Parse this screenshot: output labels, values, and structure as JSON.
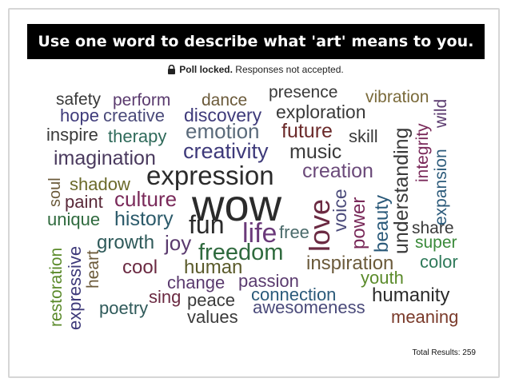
{
  "header": {
    "title": "Use one word to describe what 'art' means to you."
  },
  "status": {
    "locked_label": "Poll locked.",
    "message": "Responses not accepted.",
    "icon": "lock-icon"
  },
  "footer": {
    "total_label": "Total Results: 259"
  },
  "colors": {
    "title_bg": "#000000",
    "word_palette": [
      "#2b2b2b",
      "#3e3a7a",
      "#5a3a6e",
      "#6b2a42",
      "#2f6a3e",
      "#7a6a3a",
      "#2b5a7a",
      "#7a3a2a"
    ]
  },
  "words": [
    "wow",
    "expression",
    "creativity",
    "emotion",
    "imagination",
    "music",
    "creation",
    "love",
    "life",
    "fun",
    "freedom",
    "culture",
    "history",
    "unique",
    "paint",
    "shadow",
    "joy",
    "growth",
    "free",
    "inspiration",
    "passion",
    "connection",
    "change",
    "human",
    "cool",
    "sing",
    "peace",
    "values",
    "poetry",
    "awesomeness",
    "humanity",
    "meaning",
    "youth",
    "color",
    "super",
    "share",
    "expansion",
    "integrity",
    "understanding",
    "beauty",
    "power",
    "voice",
    "future",
    "skill",
    "exploration",
    "discovery",
    "creative",
    "hope",
    "perform",
    "safety",
    "dance",
    "presence",
    "vibration",
    "wild",
    "inspire",
    "therapy",
    "soul",
    "restoration",
    "expressive",
    "heart"
  ]
}
